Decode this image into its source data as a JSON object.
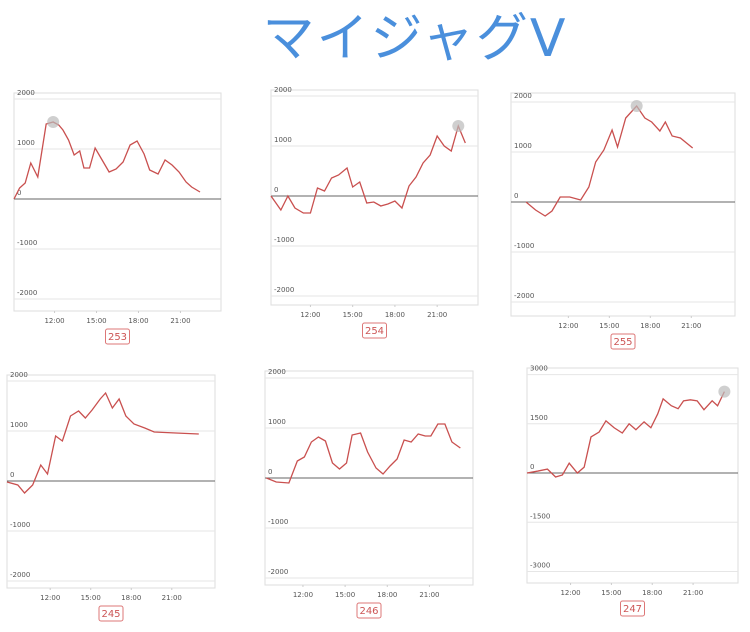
{
  "title": "マイジャグV",
  "chart_data": [
    {
      "type": "line",
      "label": "253",
      "color": "#c9504f",
      "grid": true,
      "highlight_index": 6,
      "x": [
        9.1,
        9.5,
        9.9,
        10.3,
        10.8,
        11.4,
        11.9,
        12.3,
        12.6,
        13.0,
        13.4,
        13.8,
        14.1,
        14.5,
        14.9,
        15.4,
        15.9,
        16.4,
        16.9,
        17.4,
        17.9,
        18.4,
        18.8,
        19.4,
        19.9,
        20.4,
        20.9,
        21.4,
        21.8,
        22.4
      ],
      "values": [
        0,
        220,
        320,
        720,
        440,
        1500,
        1540,
        1480,
        1380,
        1180,
        880,
        960,
        620,
        620,
        1020,
        780,
        540,
        600,
        740,
        1080,
        1160,
        900,
        580,
        500,
        780,
        680,
        540,
        340,
        240,
        140
      ],
      "xlim": [
        9.1,
        23.9
      ],
      "ylim": [
        -2240,
        2120
      ],
      "xticks": [
        {
          "value": 12,
          "label": "12:00"
        },
        {
          "value": 15,
          "label": "15:00"
        },
        {
          "value": 18,
          "label": "18:00"
        },
        {
          "value": 21,
          "label": "21:00"
        }
      ],
      "yticks": [
        2000,
        1000,
        0,
        -1000,
        -2000
      ]
    },
    {
      "type": "line",
      "label": "254",
      "color": "#c9504f",
      "grid": true,
      "highlight_index": 26,
      "x": [
        9.2,
        9.9,
        10.4,
        10.9,
        11.5,
        12.0,
        12.5,
        13.0,
        13.5,
        14.0,
        14.6,
        15.0,
        15.5,
        16.0,
        16.5,
        17.0,
        17.5,
        18.0,
        18.5,
        19.0,
        19.5,
        20.0,
        20.5,
        21.0,
        21.5,
        22.0,
        22.5,
        23.0
      ],
      "values": [
        0,
        -280,
        0,
        -240,
        -340,
        -340,
        160,
        100,
        360,
        420,
        560,
        180,
        280,
        -140,
        -120,
        -200,
        -160,
        -100,
        -240,
        200,
        380,
        660,
        820,
        1200,
        1000,
        900,
        1400,
        1060
      ],
      "xlim": [
        9.2,
        23.9
      ],
      "ylim": [
        -2180,
        2120
      ],
      "xticks": [
        {
          "value": 12,
          "label": "12:00"
        },
        {
          "value": 15,
          "label": "15:00"
        },
        {
          "value": 18,
          "label": "18:00"
        },
        {
          "value": 21,
          "label": "21:00"
        }
      ],
      "yticks": [
        2000,
        1000,
        0,
        -1000,
        -2000
      ]
    },
    {
      "type": "line",
      "label": "255",
      "color": "#c9504f",
      "grid": true,
      "highlight_index": 13,
      "x": [
        8.9,
        9.6,
        10.3,
        10.8,
        11.4,
        12.1,
        12.9,
        13.5,
        14.0,
        14.6,
        15.2,
        15.6,
        16.2,
        17.0,
        17.6,
        18.1,
        18.7,
        19.1,
        19.6,
        20.2,
        21.1
      ],
      "values": [
        0,
        -160,
        -280,
        -180,
        100,
        100,
        40,
        300,
        800,
        1040,
        1440,
        1100,
        1680,
        1920,
        1680,
        1600,
        1420,
        1600,
        1320,
        1280,
        1080
      ],
      "xlim": [
        7.8,
        24.2
      ],
      "ylim": [
        -2280,
        2180
      ],
      "xticks": [
        {
          "value": 12,
          "label": "12:00"
        },
        {
          "value": 15,
          "label": "15:00"
        },
        {
          "value": 18,
          "label": "18:00"
        },
        {
          "value": 21,
          "label": "21:00"
        }
      ],
      "yticks": [
        2000,
        1000,
        0,
        -1000,
        -2000
      ]
    },
    {
      "type": "line",
      "label": "245",
      "color": "#c9504f",
      "grid": true,
      "x": [
        8.8,
        9.6,
        10.1,
        10.7,
        11.3,
        11.8,
        12.4,
        12.9,
        13.5,
        14.1,
        14.6,
        15.1,
        15.7,
        16.1,
        16.6,
        17.1,
        17.6,
        18.2,
        19.0,
        19.7,
        21.3,
        23.0
      ],
      "values": [
        -20,
        -80,
        -240,
        -80,
        320,
        140,
        900,
        800,
        1300,
        1400,
        1260,
        1420,
        1640,
        1760,
        1460,
        1640,
        1300,
        1140,
        1060,
        980,
        960,
        940
      ],
      "xlim": [
        8.8,
        24.2
      ],
      "ylim": [
        -2140,
        2120
      ],
      "xticks": [
        {
          "value": 12,
          "label": "12:00"
        },
        {
          "value": 15,
          "label": "15:00"
        },
        {
          "value": 18,
          "label": "18:00"
        },
        {
          "value": 21,
          "label": "21:00"
        }
      ],
      "yticks": [
        2000,
        1000,
        0,
        -1000,
        -2000
      ]
    },
    {
      "type": "line",
      "label": "246",
      "color": "#c9504f",
      "grid": true,
      "x": [
        9.4,
        10.1,
        11.0,
        11.6,
        12.1,
        12.6,
        13.1,
        13.6,
        14.1,
        14.6,
        15.1,
        15.5,
        16.1,
        16.6,
        17.2,
        17.7,
        18.2,
        18.7,
        19.2,
        19.7,
        20.2,
        20.7,
        21.1,
        21.6,
        22.1,
        22.6,
        23.2
      ],
      "values": [
        0,
        -80,
        -100,
        340,
        420,
        720,
        820,
        740,
        300,
        180,
        300,
        860,
        900,
        520,
        200,
        80,
        240,
        380,
        760,
        720,
        880,
        840,
        840,
        1080,
        1080,
        720,
        600
      ],
      "xlim": [
        9.3,
        24.1
      ],
      "ylim": [
        -2140,
        2140
      ],
      "xticks": [
        {
          "value": 12,
          "label": "12:00"
        },
        {
          "value": 15,
          "label": "15:00"
        },
        {
          "value": 18,
          "label": "18:00"
        },
        {
          "value": 21,
          "label": "21:00"
        }
      ],
      "yticks": [
        2000,
        1000,
        0,
        -1000,
        -2000
      ]
    },
    {
      "type": "line",
      "label": "247",
      "color": "#c9504f",
      "grid": true,
      "highlight_index": 27,
      "x": [
        8.8,
        9.6,
        10.3,
        10.9,
        11.4,
        11.9,
        12.5,
        13.0,
        13.5,
        14.1,
        14.6,
        15.2,
        15.8,
        16.3,
        16.8,
        17.4,
        17.9,
        18.4,
        18.8,
        19.4,
        19.9,
        20.3,
        20.8,
        21.3,
        21.8,
        22.4,
        22.8,
        23.3
      ],
      "values": [
        0,
        60,
        120,
        -120,
        -60,
        300,
        0,
        180,
        1100,
        1250,
        1590,
        1380,
        1220,
        1500,
        1320,
        1560,
        1380,
        1800,
        2260,
        2050,
        1960,
        2200,
        2230,
        2200,
        1930,
        2200,
        2050,
        2480
      ],
      "xlim": [
        8.8,
        24.3
      ],
      "ylim": [
        -3350,
        3200
      ],
      "xticks": [
        {
          "value": 12,
          "label": "12:00"
        },
        {
          "value": 15,
          "label": "15:00"
        },
        {
          "value": 18,
          "label": "18:00"
        },
        {
          "value": 21,
          "label": "21:00"
        }
      ],
      "yticks": [
        3000,
        1500,
        0,
        -1500,
        -3000
      ]
    }
  ]
}
